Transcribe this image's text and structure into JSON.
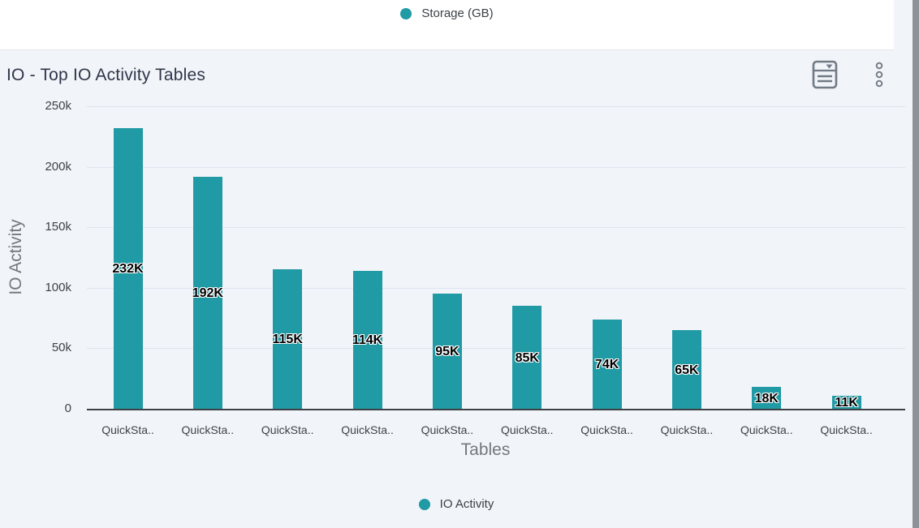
{
  "top_chart_legend": {
    "label": "Storage (GB)",
    "dot_color": "#209AA4"
  },
  "panel": {
    "title": "IO - Top IO Activity Tables",
    "background": "#f1f4f8",
    "icons": [
      "table-view-icon",
      "more-options-icon"
    ]
  },
  "chart_data": {
    "type": "bar",
    "title": "IO - Top IO Activity Tables",
    "categories": [
      "QuickSta..",
      "QuickSta..",
      "QuickSta..",
      "QuickSta..",
      "QuickSta..",
      "QuickSta..",
      "QuickSta..",
      "QuickSta..",
      "QuickSta..",
      "QuickSta.."
    ],
    "values": [
      232000,
      192000,
      115000,
      114000,
      95000,
      85000,
      74000,
      65000,
      18000,
      11000
    ],
    "data_labels": [
      "232K",
      "192K",
      "115K",
      "114K",
      "95K",
      "85K",
      "74K",
      "65K",
      "18K",
      "11K"
    ],
    "xlabel": "Tables",
    "ylabel": "IO Activity",
    "ylim": [
      0,
      250000
    ],
    "yticks": [
      "250k",
      "200k",
      "150k",
      "100k",
      "50k",
      "0"
    ],
    "bar_color": "#209AA4",
    "grid": true,
    "legend": {
      "label": "IO Activity",
      "position": "bottom"
    }
  }
}
